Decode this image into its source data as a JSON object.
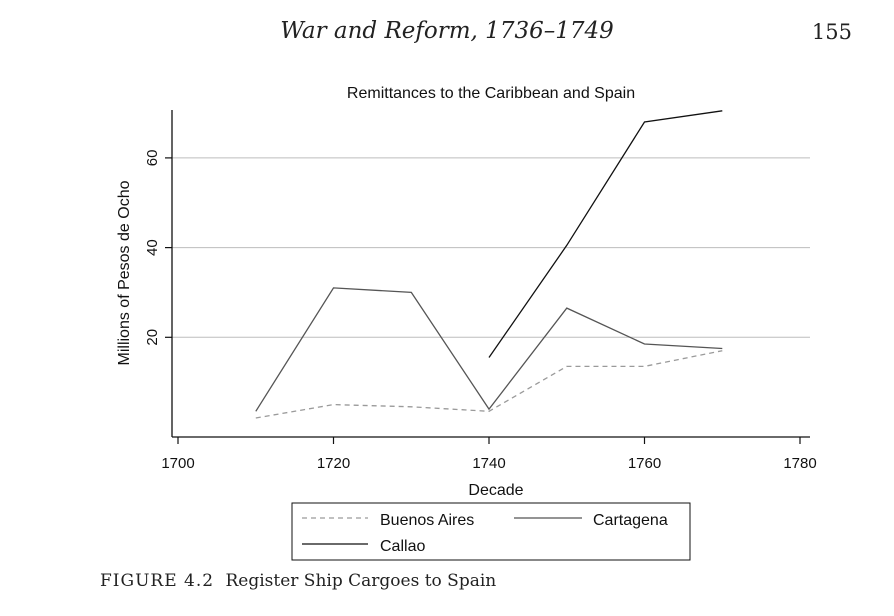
{
  "page": {
    "header_title": "War and Reform, 1736–1749",
    "page_number": "155"
  },
  "caption": {
    "label": "FIGURE 4.2",
    "text": "Register Ship Cargoes to Spain"
  },
  "chart_data": {
    "type": "line",
    "title": "Remittances to the Caribbean and Spain",
    "xlabel": "Decade",
    "ylabel": "Millions of Pesos de Ocho",
    "xlim": [
      1700,
      1780
    ],
    "ylim": [
      0,
      70
    ],
    "x_ticks": [
      1700,
      1720,
      1740,
      1760,
      1780
    ],
    "y_ticks": [
      20,
      40,
      60
    ],
    "grid": "horizontal",
    "legend_position": "bottom",
    "series": [
      {
        "name": "Buenos Aires",
        "style": "dashed",
        "color": "#9a9a9a",
        "points": [
          [
            1710,
            2
          ],
          [
            1720,
            5
          ],
          [
            1730,
            4.5
          ],
          [
            1740,
            3.5
          ],
          [
            1750,
            13.5
          ],
          [
            1760,
            13.5
          ],
          [
            1770,
            17
          ]
        ]
      },
      {
        "name": "Cartagena",
        "style": "solid",
        "color": "#555555",
        "points": [
          [
            1710,
            3.5
          ],
          [
            1720,
            31
          ],
          [
            1730,
            30
          ],
          [
            1740,
            4
          ],
          [
            1750,
            26.5
          ],
          [
            1760,
            18.5
          ],
          [
            1770,
            17.5
          ]
        ]
      },
      {
        "name": "Callao",
        "style": "solid",
        "color": "#111111",
        "points": [
          [
            1740,
            15.5
          ],
          [
            1750,
            40.5
          ],
          [
            1760,
            68
          ],
          [
            1770,
            70.5
          ]
        ]
      }
    ]
  }
}
